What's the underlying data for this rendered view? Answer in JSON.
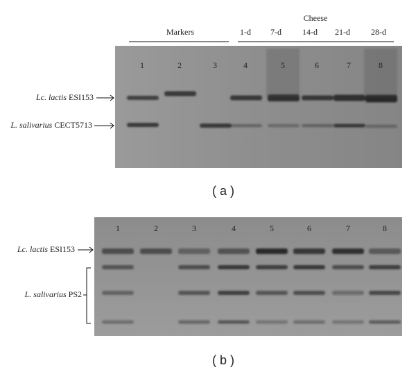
{
  "panel_a": {
    "header": "Cheese",
    "markers_label": "Markers",
    "days": [
      "1-d",
      "7-d",
      "14-d",
      "21-d",
      "28-d"
    ],
    "lanes": [
      "1",
      "2",
      "3",
      "4",
      "5",
      "6",
      "7",
      "8"
    ],
    "band_labels": [
      {
        "species": "Lc. lactis",
        "strain": "ESI153"
      },
      {
        "species": "L. salivarius",
        "strain": "CECT5713"
      }
    ],
    "caption": "( a )"
  },
  "panel_b": {
    "lanes": [
      "1",
      "2",
      "3",
      "4",
      "5",
      "6",
      "7",
      "8"
    ],
    "band_labels": [
      {
        "species": "Lc. lactis",
        "strain": "ESI153"
      },
      {
        "species": "L. salivarius",
        "strain": "PS2"
      }
    ],
    "caption": "( b )"
  }
}
